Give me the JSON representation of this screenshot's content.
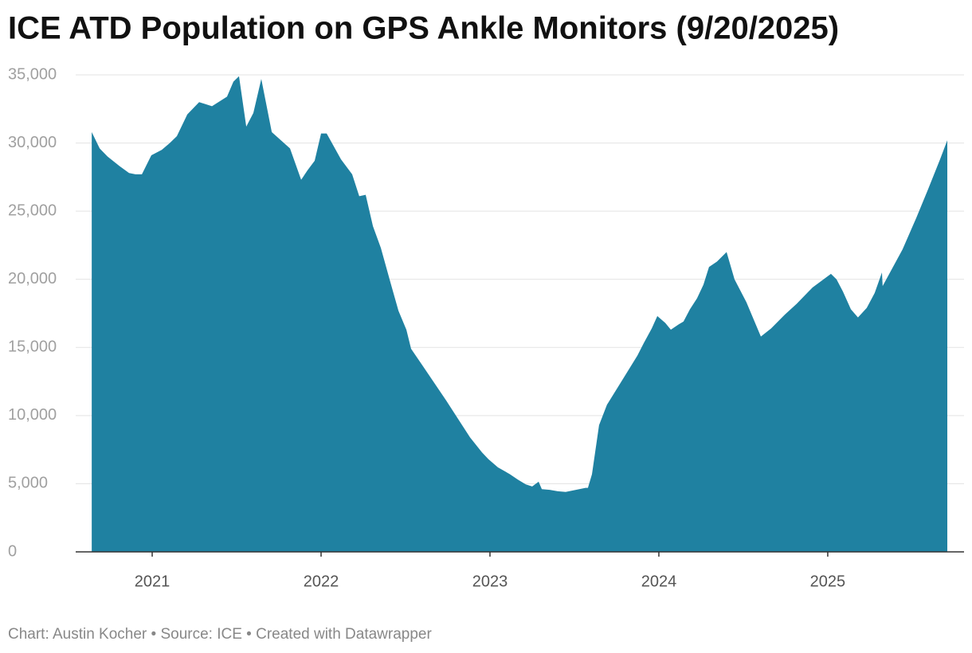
{
  "chart_data": {
    "type": "area",
    "title": "ICE ATD Population on GPS Ankle Monitors (9/20/2025)",
    "footer": "Chart: Austin Kocher • Source: ICE • Created with Datawrapper",
    "color": "#1f81a1",
    "grid": true,
    "x": [
      2020.642,
      2020.689,
      2020.736,
      2020.807,
      2020.863,
      2020.901,
      2020.939,
      2020.995,
      2021.057,
      2021.104,
      2021.146,
      2021.208,
      2021.278,
      2021.354,
      2021.443,
      2021.481,
      2021.514,
      2021.557,
      2021.599,
      2021.646,
      2021.708,
      2021.816,
      2021.882,
      2021.92,
      2021.962,
      2022.0,
      2022.033,
      2022.118,
      2022.184,
      2022.226,
      2022.264,
      2022.307,
      2022.354,
      2022.41,
      2022.458,
      2022.505,
      2022.533,
      2022.599,
      2022.741,
      2022.882,
      2022.953,
      2022.991,
      2023.047,
      2023.118,
      2023.165,
      2023.212,
      2023.25,
      2023.288,
      2023.307,
      2023.354,
      2023.401,
      2023.448,
      2023.509,
      2023.566,
      2023.58,
      2023.604,
      2023.646,
      2023.693,
      2023.778,
      2023.873,
      2023.91,
      2023.958,
      2023.991,
      2024.038,
      2024.071,
      2024.118,
      2024.146,
      2024.184,
      2024.226,
      2024.264,
      2024.297,
      2024.344,
      2024.401,
      2024.448,
      2024.519,
      2024.604,
      2024.665,
      2024.745,
      2024.816,
      2024.91,
      2025.019,
      2025.052,
      2025.09,
      2025.137,
      2025.179,
      2025.231,
      2025.278,
      2025.321,
      2025.325,
      2025.443,
      2025.524,
      2025.594,
      2025.665,
      2025.708
    ],
    "values": [
      30800,
      29600,
      29000,
      28300,
      27800,
      27700,
      27700,
      29100,
      29500,
      30000,
      30500,
      32100,
      33000,
      32700,
      33400,
      34500,
      34900,
      31200,
      32200,
      34700,
      30800,
      29600,
      27300,
      28000,
      28700,
      30700,
      30700,
      28800,
      27700,
      26100,
      26200,
      23900,
      22300,
      19800,
      17700,
      16300,
      14900,
      13700,
      11100,
      8400,
      7300,
      6800,
      6200,
      5700,
      5300,
      4950,
      4800,
      5150,
      4600,
      4550,
      4450,
      4400,
      4550,
      4700,
      4700,
      5700,
      9300,
      10800,
      12500,
      14400,
      15300,
      16400,
      17300,
      16800,
      16300,
      16700,
      16900,
      17800,
      18600,
      19600,
      20900,
      21300,
      22000,
      20000,
      18300,
      15800,
      16400,
      17400,
      18200,
      19400,
      20400,
      20000,
      19100,
      17800,
      17200,
      17900,
      19000,
      20500,
      19500,
      22200,
      24500,
      26600,
      28800,
      30200
    ],
    "xlim": [
      2020.547,
      2025.807
    ],
    "xticks": [
      2021,
      2022,
      2023,
      2024,
      2025
    ],
    "ylim": [
      0,
      35000
    ],
    "yticks": [
      0,
      {
        "value": 5000,
        "label": "5,000"
      },
      {
        "value": 10000,
        "label": "10,000"
      },
      {
        "value": 15000,
        "label": "15,000"
      },
      {
        "value": 20000,
        "label": "20,000"
      },
      {
        "value": 25000,
        "label": "25,000"
      },
      {
        "value": 30000,
        "label": "30,000"
      },
      {
        "value": 35000,
        "label": "35,000"
      }
    ]
  }
}
